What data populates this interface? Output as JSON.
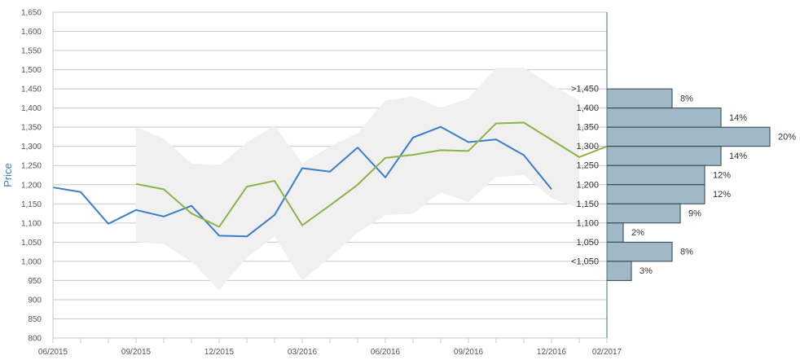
{
  "chart_data": {
    "type": "line",
    "ylabel": "Price",
    "ylim": [
      800,
      1650
    ],
    "yticks": [
      800,
      850,
      900,
      950,
      1000,
      1050,
      1100,
      1150,
      1200,
      1250,
      1300,
      1350,
      1400,
      1450,
      1500,
      1550,
      1600,
      1650
    ],
    "ytick_labels": [
      "800",
      "850",
      "900",
      "950",
      "1,000",
      "1,050",
      "1,100",
      "1,150",
      "1,200",
      "1,250",
      "1,300",
      "1,350",
      "1,400",
      "1,450",
      "1,500",
      "1,550",
      "1,600",
      "1,650"
    ],
    "xlim": [
      "2015-06",
      "2017-02"
    ],
    "xticks": [
      "06/2015",
      "09/2015",
      "12/2015",
      "03/2016",
      "06/2016",
      "09/2016",
      "12/2016",
      "02/2017"
    ],
    "months": [
      "06/2015",
      "07/2015",
      "08/2015",
      "09/2015",
      "10/2015",
      "11/2015",
      "12/2015",
      "01/2016",
      "02/2016",
      "03/2016",
      "04/2016",
      "05/2016",
      "06/2016",
      "07/2016",
      "08/2016",
      "09/2016",
      "10/2016",
      "11/2016",
      "12/2016",
      "01/2017",
      "02/2017"
    ],
    "grid": true,
    "series": [
      {
        "color": "#3a7dc9",
        "x": [
          "06/2015",
          "07/2015",
          "08/2015",
          "09/2015",
          "10/2015",
          "11/2015",
          "12/2015",
          "01/2016",
          "02/2016",
          "03/2016",
          "04/2016",
          "05/2016",
          "06/2016",
          "07/2016",
          "08/2016",
          "09/2016",
          "10/2016",
          "11/2016",
          "12/2016"
        ],
        "y": [
          1193,
          1181,
          1098,
          1134,
          1117,
          1145,
          1067,
          1065,
          1121,
          1243,
          1234,
          1297,
          1219,
          1323,
          1351,
          1311,
          1318,
          1277,
          1188
        ]
      },
      {
        "color": "#8db347",
        "x": [
          "09/2015",
          "10/2015",
          "11/2015",
          "12/2015",
          "01/2016",
          "02/2016",
          "03/2016",
          "04/2016",
          "05/2016",
          "06/2016",
          "07/2016",
          "08/2016",
          "09/2016",
          "10/2016",
          "11/2016",
          "01/2017",
          "02/2017"
        ],
        "y": [
          1202,
          1188,
          1125,
          1090,
          1195,
          1210,
          1094,
          1146,
          1200,
          1270,
          1278,
          1290,
          1288,
          1360,
          1362,
          1272,
          1300
        ]
      }
    ],
    "band": {
      "color": "#f0f0f0",
      "x": [
        "09/2015",
        "10/2015",
        "11/2015",
        "12/2015",
        "01/2016",
        "02/2016",
        "03/2016",
        "04/2016",
        "05/2016",
        "06/2016",
        "07/2016",
        "08/2016",
        "09/2016",
        "10/2016",
        "11/2016",
        "12/2016",
        "01/2017"
      ],
      "upper": [
        1350,
        1320,
        1255,
        1250,
        1310,
        1355,
        1255,
        1300,
        1335,
        1420,
        1430,
        1400,
        1425,
        1505,
        1505,
        1460,
        1420
      ],
      "lower": [
        1050,
        1045,
        1000,
        925,
        1010,
        1065,
        950,
        1010,
        1075,
        1120,
        1125,
        1180,
        1155,
        1220,
        1225,
        1165,
        1140
      ]
    },
    "distribution": {
      "color": "#a1b9c6",
      "border": "#2c4254",
      "categories": [
        ">1,450",
        "1,400",
        "1,350",
        "1,300",
        "1,250",
        "1,200",
        "1,150",
        "1,100",
        "1,050",
        "<1,050"
      ],
      "values": [
        8,
        14,
        20,
        14,
        12,
        12,
        9,
        2,
        8,
        3
      ],
      "labels": [
        "8%",
        "14%",
        "20%",
        "14%",
        "12%",
        "12%",
        "9%",
        "2%",
        "8%",
        "3%"
      ]
    }
  }
}
